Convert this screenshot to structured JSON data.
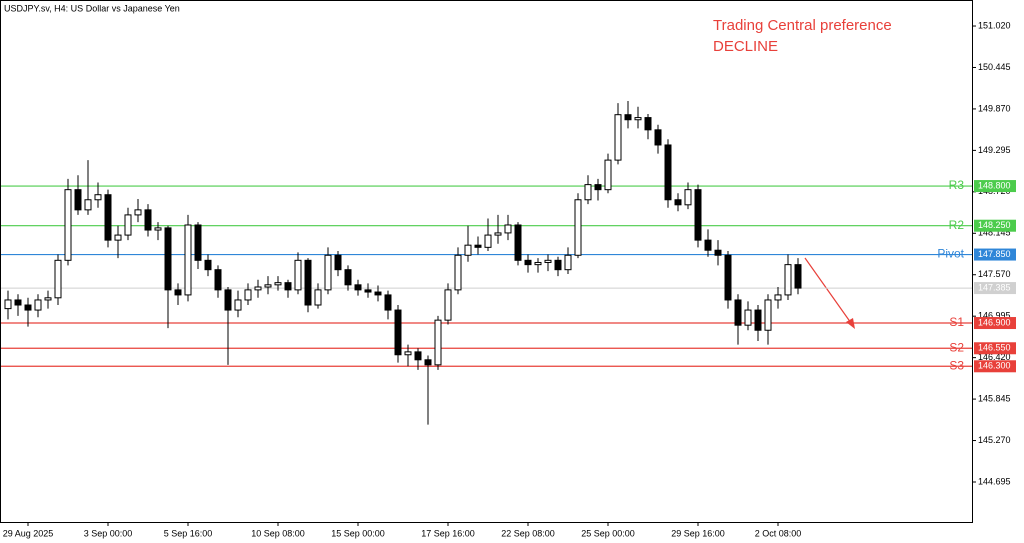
{
  "chart_data": {
    "type": "candlestick",
    "title": "USDJPY.sv, H4:  US Dollar vs Japanese Yen",
    "annotations": [
      "Trading Central preference",
      "DECLINE"
    ],
    "ylim": [
      144.14,
      151.381
    ],
    "yticks": [
      {
        "value": 151.02,
        "label": "151.020"
      },
      {
        "value": 150.445,
        "label": "150.445"
      },
      {
        "value": 149.87,
        "label": "149.870"
      },
      {
        "value": 149.295,
        "label": "149.295"
      },
      {
        "value": 148.72,
        "label": "148.720"
      },
      {
        "value": 148.145,
        "label": "148.145"
      },
      {
        "value": 147.57,
        "label": "147.570"
      },
      {
        "value": 146.995,
        "label": "146.995"
      },
      {
        "value": 146.42,
        "label": "146.420"
      },
      {
        "value": 145.845,
        "label": "145.845"
      },
      {
        "value": 145.27,
        "label": "145.270"
      },
      {
        "value": 144.695,
        "label": "144.695"
      }
    ],
    "levels": [
      {
        "name": "R3",
        "value": 148.8,
        "label": "148.800",
        "color": "#4ccc4c"
      },
      {
        "name": "R2",
        "value": 148.25,
        "label": "148.250",
        "color": "#4ccc4c"
      },
      {
        "name": "Pivot",
        "value": 147.85,
        "label": "147.850",
        "color": "#2f86d8"
      },
      {
        "name": "S1",
        "value": 146.9,
        "label": "146.900",
        "color": "#e8403a"
      },
      {
        "name": "S2",
        "value": 146.55,
        "label": "146.550",
        "color": "#e8403a"
      },
      {
        "name": "S3",
        "value": 146.3,
        "label": "146.300",
        "color": "#e8403a"
      }
    ],
    "current_price": {
      "value": 147.385,
      "label": "147.385"
    },
    "categories": [
      null,
      null,
      "29 Aug 2025",
      null,
      null,
      null,
      null,
      null,
      null,
      null,
      "3 Sep 00:00",
      null,
      null,
      null,
      null,
      null,
      null,
      null,
      "5 Sep 16:00",
      null,
      null,
      null,
      null,
      null,
      null,
      null,
      null,
      "10 Sep 08:00",
      null,
      null,
      null,
      null,
      null,
      null,
      null,
      "15 Sep 00:00",
      null,
      null,
      null,
      null,
      null,
      null,
      null,
      null,
      "17 Sep 16:00",
      null,
      null,
      null,
      null,
      null,
      null,
      null,
      "22 Sep 08:00",
      null,
      null,
      null,
      null,
      null,
      null,
      null,
      "25 Sep 00:00",
      null,
      null,
      null,
      null,
      null,
      null,
      null,
      null,
      "29 Sep 16:00",
      null,
      null,
      null,
      null,
      null,
      null,
      null,
      "2 Oct 08:00",
      null,
      null
    ],
    "candles": [
      [
        147.1,
        147.35,
        146.95,
        147.22
      ],
      [
        147.22,
        147.3,
        147.0,
        147.15
      ],
      [
        147.15,
        147.25,
        146.85,
        147.08
      ],
      [
        147.08,
        147.3,
        146.98,
        147.22
      ],
      [
        147.22,
        147.35,
        147.1,
        147.25
      ],
      [
        147.25,
        147.85,
        147.15,
        147.77
      ],
      [
        147.77,
        148.9,
        147.7,
        148.75
      ],
      [
        148.75,
        148.95,
        148.4,
        148.47
      ],
      [
        148.47,
        149.16,
        148.4,
        148.61
      ],
      [
        148.61,
        148.85,
        148.5,
        148.68
      ],
      [
        148.68,
        148.75,
        147.95,
        148.05
      ],
      [
        148.05,
        148.25,
        147.8,
        148.12
      ],
      [
        148.12,
        148.5,
        148.05,
        148.4
      ],
      [
        148.4,
        148.62,
        148.3,
        148.47
      ],
      [
        148.47,
        148.55,
        148.1,
        148.19
      ],
      [
        148.19,
        148.3,
        148.05,
        148.22
      ],
      [
        148.22,
        148.25,
        146.83,
        147.36
      ],
      [
        147.36,
        147.45,
        147.15,
        147.29
      ],
      [
        147.29,
        148.4,
        147.2,
        148.26
      ],
      [
        148.26,
        148.3,
        147.65,
        147.77
      ],
      [
        147.77,
        147.85,
        147.55,
        147.64
      ],
      [
        147.64,
        147.7,
        147.25,
        147.36
      ],
      [
        147.36,
        147.4,
        146.32,
        147.08
      ],
      [
        147.08,
        147.35,
        146.98,
        147.22
      ],
      [
        147.22,
        147.45,
        147.15,
        147.36
      ],
      [
        147.36,
        147.5,
        147.25,
        147.4
      ],
      [
        147.4,
        147.55,
        147.3,
        147.43
      ],
      [
        147.43,
        147.55,
        147.35,
        147.46
      ],
      [
        147.46,
        147.5,
        147.25,
        147.36
      ],
      [
        147.36,
        147.88,
        147.3,
        147.77
      ],
      [
        147.77,
        147.8,
        147.05,
        147.15
      ],
      [
        147.15,
        147.45,
        147.1,
        147.36
      ],
      [
        147.36,
        147.95,
        147.3,
        147.84
      ],
      [
        147.84,
        147.9,
        147.55,
        147.64
      ],
      [
        147.64,
        147.7,
        147.35,
        147.43
      ],
      [
        147.43,
        147.5,
        147.28,
        147.36
      ],
      [
        147.36,
        147.45,
        147.25,
        147.33
      ],
      [
        147.33,
        147.42,
        147.2,
        147.29
      ],
      [
        147.29,
        147.35,
        146.95,
        147.08
      ],
      [
        147.08,
        147.15,
        146.35,
        146.46
      ],
      [
        146.46,
        146.6,
        146.3,
        146.5
      ],
      [
        146.5,
        146.55,
        146.25,
        146.39
      ],
      [
        146.39,
        146.45,
        145.49,
        146.32
      ],
      [
        146.32,
        147.0,
        146.25,
        146.94
      ],
      [
        146.94,
        147.45,
        146.88,
        147.36
      ],
      [
        147.36,
        147.95,
        147.3,
        147.84
      ],
      [
        147.84,
        148.25,
        147.75,
        147.98
      ],
      [
        147.98,
        148.1,
        147.85,
        147.95
      ],
      [
        147.95,
        148.35,
        147.9,
        148.12
      ],
      [
        148.12,
        148.4,
        148.0,
        148.15
      ],
      [
        148.15,
        148.4,
        148.05,
        148.26
      ],
      [
        148.26,
        148.3,
        147.7,
        147.77
      ],
      [
        147.77,
        147.85,
        147.6,
        147.71
      ],
      [
        147.71,
        147.8,
        147.6,
        147.74
      ],
      [
        147.74,
        147.85,
        147.62,
        147.77
      ],
      [
        147.77,
        147.82,
        147.55,
        147.64
      ],
      [
        147.64,
        147.95,
        147.58,
        147.84
      ],
      [
        147.84,
        148.7,
        147.8,
        148.61
      ],
      [
        148.61,
        148.95,
        148.55,
        148.82
      ],
      [
        148.82,
        148.9,
        148.6,
        148.75
      ],
      [
        148.75,
        149.25,
        148.7,
        149.16
      ],
      [
        149.16,
        149.95,
        149.1,
        149.79
      ],
      [
        149.79,
        149.98,
        149.6,
        149.72
      ],
      [
        149.72,
        149.9,
        149.6,
        149.75
      ],
      [
        149.75,
        149.8,
        149.45,
        149.58
      ],
      [
        149.58,
        149.65,
        149.25,
        149.37
      ],
      [
        149.37,
        149.45,
        148.5,
        148.61
      ],
      [
        148.61,
        148.7,
        148.45,
        148.54
      ],
      [
        148.54,
        148.85,
        148.48,
        148.75
      ],
      [
        148.75,
        148.82,
        147.95,
        148.05
      ],
      [
        148.05,
        148.2,
        147.82,
        147.91
      ],
      [
        147.91,
        148.05,
        147.7,
        147.84
      ],
      [
        147.84,
        147.9,
        147.1,
        147.22
      ],
      [
        147.22,
        147.3,
        146.6,
        146.87
      ],
      [
        146.87,
        147.2,
        146.8,
        147.08
      ],
      [
        147.08,
        147.15,
        146.65,
        146.8
      ],
      [
        146.8,
        147.3,
        146.6,
        147.22
      ],
      [
        147.22,
        147.4,
        147.1,
        147.29
      ],
      [
        147.29,
        147.85,
        147.22,
        147.71
      ],
      [
        147.71,
        147.8,
        147.3,
        147.385
      ]
    ]
  }
}
